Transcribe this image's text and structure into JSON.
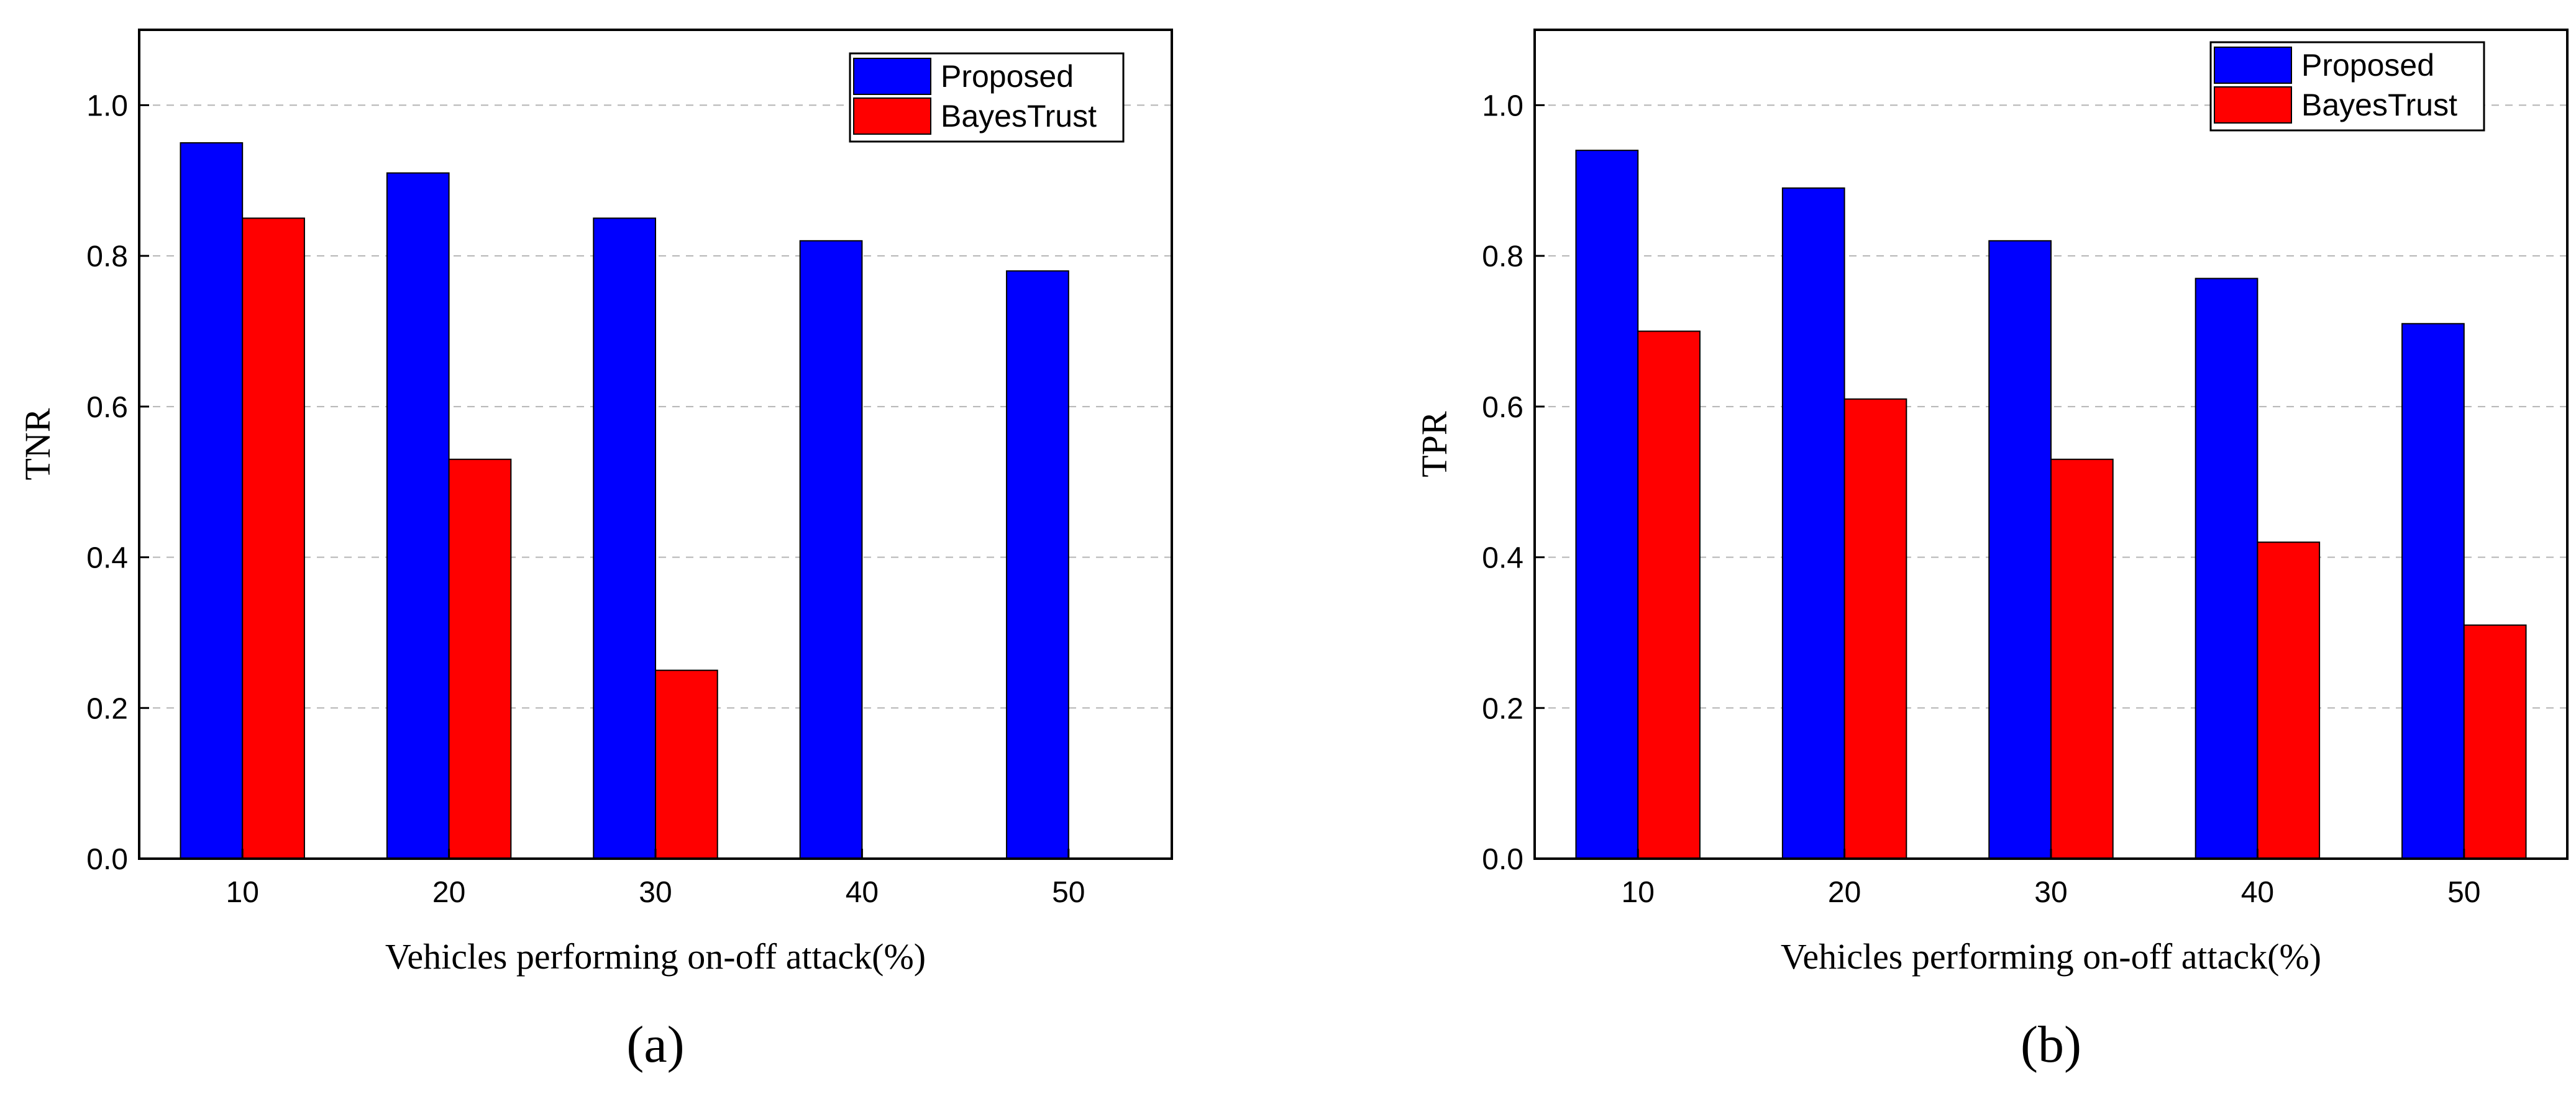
{
  "chart_data": [
    {
      "type": "bar",
      "panel_label": "(a)",
      "categories": [
        "10",
        "20",
        "30",
        "40",
        "50"
      ],
      "series": [
        {
          "name": "Proposed",
          "values": [
            0.95,
            0.91,
            0.85,
            0.82,
            0.78
          ],
          "color": "#0000ff"
        },
        {
          "name": "BayesTrust",
          "values": [
            0.85,
            0.53,
            0.25,
            0,
            0
          ],
          "color": "#ff0000"
        }
      ],
      "xlabel": "Vehicles performing on-off  attack(%)",
      "ylabel": "TNR",
      "ylim": [
        0,
        1.1
      ],
      "yticks": [
        0.0,
        0.2,
        0.4,
        0.6,
        0.8,
        1.0
      ],
      "ytick_labels": [
        "0.0",
        "0.2",
        "0.4",
        "0.6",
        "0.8",
        "1.0"
      ],
      "grid": true,
      "legend": "top-right"
    },
    {
      "type": "bar",
      "panel_label": "(b)",
      "categories": [
        "10",
        "20",
        "30",
        "40",
        "50"
      ],
      "series": [
        {
          "name": "Proposed",
          "values": [
            0.94,
            0.89,
            0.82,
            0.77,
            0.71
          ],
          "color": "#0000ff"
        },
        {
          "name": "BayesTrust",
          "values": [
            0.7,
            0.61,
            0.53,
            0.42,
            0.31
          ],
          "color": "#ff0000"
        }
      ],
      "xlabel": "Vehicles performing on-off attack(%)",
      "ylabel": "TPR",
      "ylim": [
        0,
        1.1
      ],
      "yticks": [
        0.0,
        0.2,
        0.4,
        0.6,
        0.8,
        1.0
      ],
      "ytick_labels": [
        "0.0",
        "0.2",
        "0.4",
        "0.6",
        "0.8",
        "1.0"
      ],
      "grid": true,
      "legend": "top-right"
    }
  ]
}
